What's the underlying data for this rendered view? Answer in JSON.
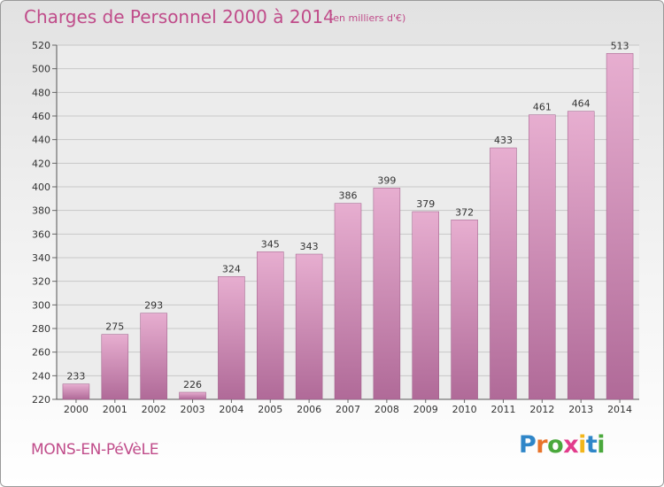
{
  "chart_data": {
    "type": "bar",
    "title": "Charges de Personnel 2000 à 2014",
    "subtitle": "(en milliers d'€)",
    "categories": [
      "2000",
      "2001",
      "2002",
      "2003",
      "2004",
      "2005",
      "2006",
      "2007",
      "2008",
      "2009",
      "2010",
      "2011",
      "2012",
      "2013",
      "2014"
    ],
    "values": [
      233,
      275,
      293,
      226,
      324,
      345,
      343,
      386,
      399,
      379,
      372,
      433,
      461,
      464,
      513
    ],
    "ylim": [
      220,
      520
    ],
    "yticks": [
      220,
      240,
      260,
      280,
      300,
      320,
      340,
      360,
      380,
      400,
      420,
      440,
      460,
      480,
      500,
      520
    ],
    "grid": true,
    "bar_color_top": "#e7aed0",
    "bar_color_bottom": "#b06a98"
  },
  "footer": {
    "town": "MONS-EN-PéVèLE",
    "logo": [
      "P",
      "r",
      "o",
      "x",
      "i",
      "t",
      "i"
    ]
  },
  "colors": {
    "accent": "#c04c8a",
    "grid": "#c8c8c8"
  }
}
